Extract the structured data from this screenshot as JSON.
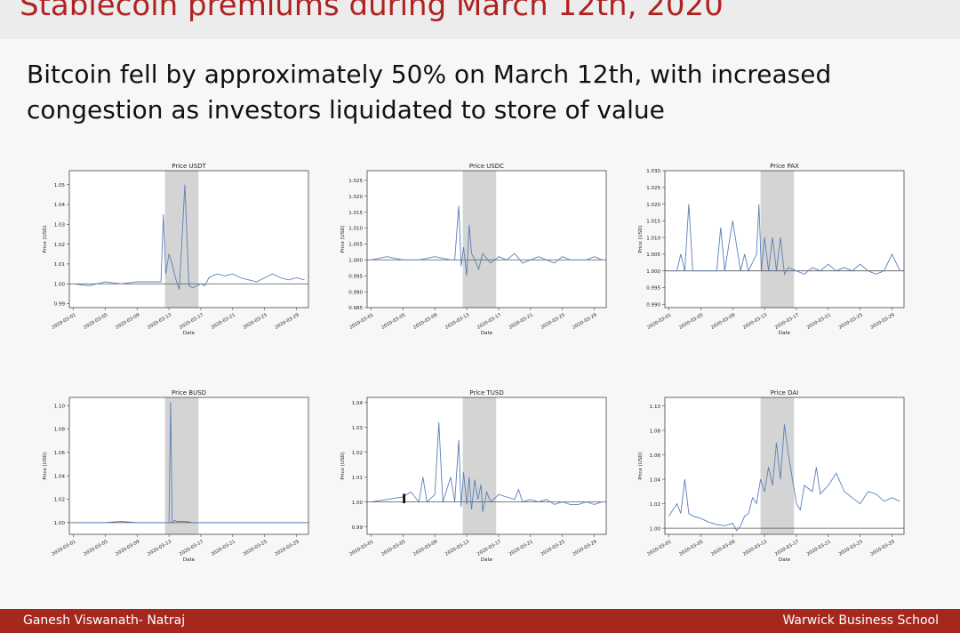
{
  "slide": {
    "title": "Stablecoin premiums during March 12th, 2020",
    "subtitle": "Bitcoin fell by approximately 50% on March 12th, with increased congestion as investors liquidated to store of value",
    "footer_left": "Ganesh Viswanath- Natraj",
    "footer_right": "Warwick Business School"
  },
  "chart_data": [
    {
      "type": "line",
      "title": "Price USDT",
      "xlabel": "Date",
      "ylabel": "Price (USD)",
      "x_ticks": [
        "2020-03-01",
        "2020-03-05",
        "2020-03-09",
        "2020-03-13",
        "2020-03-17",
        "2020-03-21",
        "2020-03-25",
        "2020-03-29"
      ],
      "y_ticks": [
        0.99,
        1.0,
        1.01,
        1.02,
        1.03,
        1.04,
        1.05
      ],
      "y_tick_labels": [
        "0.99",
        "1.00",
        "1.01",
        "1.02",
        "1.03",
        "1.04",
        "1.05"
      ],
      "ylim": [
        0.988,
        1.057
      ],
      "shaded_period": [
        "2020-03-12",
        "2020-03-16"
      ],
      "baseline": 1.0,
      "grid": false,
      "series": [
        {
          "x": [
            0,
            2,
            4,
            6,
            8,
            10,
            11,
            11.3,
            11.6,
            12,
            12.4,
            12.8,
            13.3,
            14,
            14.5,
            15,
            15.5,
            16,
            16.5,
            17,
            18,
            19,
            20,
            21,
            22,
            23,
            24,
            25,
            26,
            27,
            28,
            29
          ],
          "y": [
            1.0,
            0.999,
            1.001,
            1.0,
            1.001,
            1.001,
            1.001,
            1.035,
            1.005,
            1.015,
            1.01,
            1.003,
            0.997,
            1.05,
            0.999,
            0.998,
            0.999,
            1.0,
            0.999,
            1.003,
            1.005,
            1.004,
            1.005,
            1.003,
            1.002,
            1.001,
            1.003,
            1.005,
            1.003,
            1.002,
            1.003,
            1.002
          ]
        }
      ]
    },
    {
      "type": "line",
      "title": "Price USDC",
      "xlabel": "Date",
      "ylabel": "Price (USD)",
      "x_ticks": [
        "2020-03-01",
        "2020-03-05",
        "2020-03-09",
        "2020-03-13",
        "2020-03-17",
        "2020-03-21",
        "2020-03-25",
        "2020-03-29"
      ],
      "y_ticks": [
        0.985,
        0.99,
        0.995,
        1.0,
        1.005,
        1.01,
        1.015,
        1.02,
        1.025
      ],
      "y_tick_labels": [
        "0.985",
        "0.990",
        "0.995",
        "1.000",
        "1.005",
        "1.010",
        "1.015",
        "1.020",
        "1.025"
      ],
      "ylim": [
        0.985,
        1.028
      ],
      "shaded_period": [
        "2020-03-12",
        "2020-03-16"
      ],
      "baseline": 1.0,
      "grid": false,
      "series": [
        {
          "x": [
            0,
            2,
            4,
            6,
            8,
            10,
            10.5,
            11,
            11.3,
            11.6,
            12,
            12.3,
            12.6,
            13,
            13.5,
            14,
            15,
            16,
            17,
            18,
            19,
            20,
            21,
            22,
            23,
            24,
            25,
            26,
            27,
            28,
            29
          ],
          "y": [
            1.0,
            1.001,
            1.0,
            1.0,
            1.001,
            1.0,
            1.0,
            1.017,
            0.998,
            1.004,
            0.995,
            1.011,
            1.002,
            1.0,
            0.997,
            1.002,
            0.999,
            1.001,
            1.0,
            1.002,
            0.999,
            1.0,
            1.001,
            1.0,
            0.999,
            1.001,
            1.0,
            1.0,
            1.0,
            1.001,
            1.0
          ]
        }
      ]
    },
    {
      "type": "line",
      "title": "Price PAX",
      "xlabel": "Date",
      "ylabel": "Price (USD)",
      "x_ticks": [
        "2020-03-01",
        "2020-03-05",
        "2020-03-09",
        "2020-03-13",
        "2020-03-17",
        "2020-03-21",
        "2020-03-25",
        "2020-03-29"
      ],
      "y_ticks": [
        0.99,
        0.995,
        1.0,
        1.005,
        1.01,
        1.015,
        1.02,
        1.025,
        1.03
      ],
      "y_tick_labels": [
        "0.990",
        "0.995",
        "1.000",
        "1.005",
        "1.010",
        "1.015",
        "1.020",
        "1.025",
        "1.030"
      ],
      "ylim": [
        0.989,
        1.03
      ],
      "shaded_period": [
        "2020-03-12",
        "2020-03-16"
      ],
      "baseline": 1.0,
      "grid": false,
      "series": [
        {
          "x": [
            0,
            1,
            1.5,
            2,
            2.5,
            3,
            4,
            5,
            6,
            6.5,
            7,
            8,
            9,
            9.5,
            10,
            11,
            11.3,
            11.6,
            12,
            12.5,
            13,
            13.5,
            14,
            14.5,
            15,
            16,
            17,
            18,
            19,
            20,
            21,
            22,
            23,
            24,
            25,
            26,
            27,
            28,
            29
          ],
          "y": [
            1.0,
            1.0,
            1.005,
            1.0,
            1.02,
            1.0,
            1.0,
            1.0,
            1.0,
            1.013,
            1.0,
            1.015,
            1.0,
            1.005,
            1.0,
            1.005,
            1.02,
            1.0,
            1.01,
            1.0,
            1.01,
            1.0,
            1.01,
            0.999,
            1.001,
            1.0,
            0.999,
            1.001,
            1.0,
            1.002,
            1.0,
            1.001,
            1.0,
            1.002,
            1.0,
            0.999,
            1.0,
            1.005,
            1.0
          ]
        }
      ]
    },
    {
      "type": "line",
      "title": "Price BUSD",
      "xlabel": "Date",
      "ylabel": "Price (USD)",
      "x_ticks": [
        "2020-03-01",
        "2020-03-05",
        "2020-03-09",
        "2020-03-13",
        "2020-03-17",
        "2020-03-21",
        "2020-03-25",
        "2020-03-29"
      ],
      "y_ticks": [
        1.0,
        1.02,
        1.04,
        1.06,
        1.08,
        1.1
      ],
      "y_tick_labels": [
        "1.00",
        "1.02",
        "1.04",
        "1.06",
        "1.08",
        "1.10"
      ],
      "ylim": [
        0.99,
        1.107
      ],
      "shaded_period": [
        "2020-03-12",
        "2020-03-16"
      ],
      "baseline": 1.0,
      "grid": false,
      "series": [
        {
          "x": [
            0,
            2,
            4,
            6,
            8,
            10,
            11,
            12,
            12.2,
            12.4,
            12.7,
            13,
            14,
            15,
            16,
            18,
            20,
            22,
            24,
            26,
            28,
            29
          ],
          "y": [
            1.0,
            1.0,
            1.0,
            1.001,
            1.0,
            1.0,
            1.0,
            1.0,
            1.103,
            1.0,
            1.002,
            1.001,
            1.001,
            1.0,
            1.0,
            1.0,
            1.0,
            1.0,
            1.0,
            1.0,
            1.0,
            1.0
          ]
        }
      ]
    },
    {
      "type": "line",
      "title": "Price TUSD",
      "xlabel": "Date",
      "ylabel": "Price (USD)",
      "x_ticks": [
        "2020-03-01",
        "2020-03-05",
        "2020-03-09",
        "2020-03-13",
        "2020-03-17",
        "2020-03-21",
        "2020-03-25",
        "2020-03-29"
      ],
      "y_ticks": [
        0.99,
        1.0,
        1.01,
        1.02,
        1.03,
        1.04
      ],
      "y_tick_labels": [
        "0.99",
        "1.00",
        "1.01",
        "1.02",
        "1.03",
        "1.04"
      ],
      "ylim": [
        0.987,
        1.042
      ],
      "shaded_period": [
        "2020-03-12",
        "2020-03-16"
      ],
      "baseline": 1.0,
      "grid": false,
      "series": [
        {
          "x": [
            0,
            2,
            4,
            5,
            6,
            6.5,
            7,
            8,
            8.5,
            9,
            10,
            10.5,
            11,
            11.3,
            11.6,
            12,
            12.3,
            12.6,
            13,
            13.4,
            13.8,
            14,
            14.5,
            15,
            16,
            17,
            18,
            18.5,
            19,
            20,
            21,
            22,
            23,
            24,
            25,
            26,
            27,
            28,
            29
          ],
          "y": [
            1.0,
            1.001,
            1.002,
            1.004,
            1.0,
            1.01,
            1.0,
            1.003,
            1.032,
            1.0,
            1.01,
            1.0,
            1.025,
            0.998,
            1.012,
            0.999,
            1.01,
            0.997,
            1.009,
            1.001,
            1.007,
            0.996,
            1.004,
            1.0,
            1.003,
            1.002,
            1.001,
            1.005,
            1.0,
            1.001,
            1.0,
            1.001,
            0.999,
            1.0,
            0.999,
            0.999,
            1.0,
            0.999,
            1.0
          ]
        }
      ]
    },
    {
      "type": "line",
      "title": "Price DAI",
      "xlabel": "Date",
      "ylabel": "Price (USD)",
      "x_ticks": [
        "2020-03-01",
        "2020-03-05",
        "2020-03-09",
        "2020-03-13",
        "2020-03-17",
        "2020-03-21",
        "2020-03-25",
        "2020-03-29"
      ],
      "y_ticks": [
        1.0,
        1.02,
        1.04,
        1.06,
        1.08,
        1.1
      ],
      "y_tick_labels": [
        "1.00",
        "1.02",
        "1.04",
        "1.06",
        "1.08",
        "1.10"
      ],
      "ylim": [
        0.995,
        1.107
      ],
      "shaded_period": [
        "2020-03-12",
        "2020-03-16"
      ],
      "baseline": 1.0,
      "grid": false,
      "series": [
        {
          "x": [
            0,
            0.5,
            1,
            1.5,
            2,
            2.5,
            3,
            4,
            5,
            6,
            7,
            8,
            8.5,
            9,
            9.5,
            10,
            10.5,
            11,
            11.5,
            12,
            12.5,
            13,
            13.5,
            14,
            14.5,
            15,
            16,
            16.5,
            17,
            18,
            18.5,
            19,
            20,
            21,
            22,
            23,
            24,
            25,
            26,
            27,
            28,
            29
          ],
          "y": [
            1.01,
            1.015,
            1.02,
            1.012,
            1.04,
            1.012,
            1.01,
            1.008,
            1.005,
            1.003,
            1.002,
            1.004,
            0.998,
            1.002,
            1.01,
            1.012,
            1.025,
            1.02,
            1.04,
            1.03,
            1.05,
            1.035,
            1.07,
            1.04,
            1.085,
            1.06,
            1.02,
            1.015,
            1.035,
            1.03,
            1.05,
            1.028,
            1.035,
            1.045,
            1.03,
            1.025,
            1.02,
            1.03,
            1.028,
            1.022,
            1.025,
            1.022
          ]
        }
      ]
    }
  ]
}
